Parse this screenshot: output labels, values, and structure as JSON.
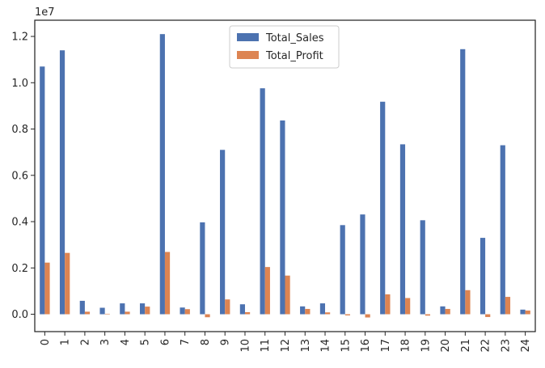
{
  "chart_data": {
    "type": "bar",
    "title": "",
    "xlabel": "",
    "ylabel": "",
    "y_multiplier_label": "1e7",
    "y_multiplier": 10000000,
    "ylim": [
      -750000,
      12700000
    ],
    "y_ticks": [
      0,
      2000000,
      4000000,
      6000000,
      8000000,
      10000000,
      12000000
    ],
    "y_tick_labels": [
      "0.0",
      "0.2",
      "0.4",
      "0.6",
      "0.8",
      "1.0",
      "1.2"
    ],
    "categories": [
      "0",
      "1",
      "2",
      "3",
      "4",
      "5",
      "6",
      "7",
      "8",
      "9",
      "10",
      "11",
      "12",
      "13",
      "14",
      "15",
      "16",
      "17",
      "18",
      "19",
      "20",
      "21",
      "22",
      "23",
      "24"
    ],
    "grid": false,
    "legend_position": "upper-center",
    "series": [
      {
        "name": "Total_Sales",
        "color": "#4c72b0",
        "values": [
          10700000,
          11400000,
          580000,
          280000,
          470000,
          470000,
          12100000,
          290000,
          3970000,
          7100000,
          430000,
          9760000,
          8370000,
          340000,
          470000,
          3850000,
          4310000,
          9180000,
          7340000,
          4060000,
          340000,
          11450000,
          3300000,
          7300000,
          200000
        ]
      },
      {
        "name": "Total_Profit",
        "color": "#dd8452",
        "values": [
          2230000,
          2650000,
          110000,
          20000,
          110000,
          330000,
          2690000,
          220000,
          -130000,
          640000,
          90000,
          2040000,
          1670000,
          230000,
          80000,
          -50000,
          -140000,
          860000,
          700000,
          -60000,
          230000,
          1040000,
          -120000,
          750000,
          160000
        ]
      }
    ]
  }
}
